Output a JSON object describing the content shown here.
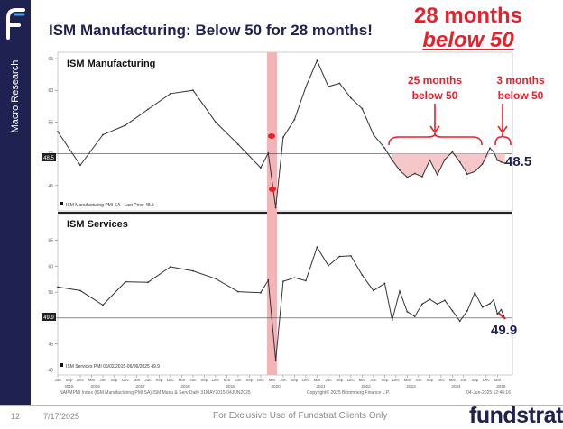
{
  "sidebar": {
    "label": "Macro Research"
  },
  "title": "ISM Manufacturing: Below 50 for 28 months!",
  "headline": {
    "line1": "28 months",
    "line2": "below 50"
  },
  "annotations": {
    "a1_l1": "25 months",
    "a1_l2": "below 50",
    "a2_l1": "3 months",
    "a2_l2": "below 50"
  },
  "footer": {
    "page": "12",
    "date": "7/17/2025",
    "disclaimer": "For Exclusive Use of Fundstrat Clients Only",
    "brand": "fundstrat"
  },
  "bloomberg_notes": {
    "left": "NAPMPMI Index (ISM Manufacturing PMI SA) ISM Manu & Serv Daily 31MAY2015-04JUN2025",
    "right": "Copyright© 2025 Bloomberg Finance L.P.",
    "date_stamp": "04-Jun-2025 12:46:16"
  },
  "colors": {
    "navy": "#1f2150",
    "red": "#e8202a",
    "shade": "#f3b4b7",
    "line": "#333333"
  },
  "chart_data": [
    {
      "type": "line",
      "title": "ISM Manufacturing",
      "legend": "ISM Manufacturing PMI SA - Last Price 48.5",
      "last_value": 48.5,
      "reference_line": 50,
      "ylim": [
        41,
        66
      ],
      "y_ticks": [
        45,
        50,
        55,
        60,
        65
      ],
      "x": [
        "2015-06",
        "2015-12",
        "2016-06",
        "2016-12",
        "2017-06",
        "2017-12",
        "2018-06",
        "2018-12",
        "2019-06",
        "2019-12",
        "2020-02",
        "2020-04",
        "2020-06",
        "2020-09",
        "2020-12",
        "2021-03",
        "2021-06",
        "2021-09",
        "2021-12",
        "2022-03",
        "2022-06",
        "2022-09",
        "2022-11",
        "2023-01",
        "2023-03",
        "2023-05",
        "2023-07",
        "2023-09",
        "2023-11",
        "2024-01",
        "2024-03",
        "2024-05",
        "2024-07",
        "2024-09",
        "2024-11",
        "2025-01",
        "2025-02",
        "2025-03",
        "2025-04",
        "2025-05"
      ],
      "values": [
        53.5,
        48.2,
        53.0,
        54.5,
        57.0,
        59.5,
        60.0,
        55.0,
        51.5,
        47.8,
        50.1,
        41.5,
        52.6,
        55.4,
        60.5,
        64.7,
        60.6,
        61.1,
        58.8,
        57.1,
        53.0,
        50.9,
        49.0,
        47.4,
        46.3,
        46.9,
        46.4,
        49.0,
        46.7,
        49.1,
        50.3,
        48.7,
        46.8,
        47.2,
        48.4,
        50.9,
        50.3,
        49.0,
        48.7,
        48.5
      ]
    },
    {
      "type": "line",
      "title": "ISM Services",
      "legend": "ISM Services PMI 06/02/2015-06/06/2025 49.9",
      "last_value": 49.9,
      "reference_line": 50,
      "ylim": [
        39,
        70
      ],
      "y_ticks": [
        40,
        45,
        50,
        55,
        60,
        65
      ],
      "x": [
        "2015-06",
        "2015-12",
        "2016-06",
        "2016-12",
        "2017-06",
        "2017-12",
        "2018-06",
        "2018-12",
        "2019-06",
        "2019-12",
        "2020-02",
        "2020-04",
        "2020-06",
        "2020-09",
        "2020-12",
        "2021-03",
        "2021-06",
        "2021-09",
        "2021-12",
        "2022-03",
        "2022-06",
        "2022-09",
        "2022-11",
        "2023-01",
        "2023-03",
        "2023-05",
        "2023-07",
        "2023-09",
        "2023-11",
        "2024-01",
        "2024-03",
        "2024-05",
        "2024-07",
        "2024-09",
        "2024-11",
        "2025-01",
        "2025-02",
        "2025-03",
        "2025-04",
        "2025-05"
      ],
      "values": [
        56.0,
        55.3,
        52.5,
        57.0,
        56.9,
        59.9,
        59.1,
        57.6,
        55.1,
        54.9,
        57.3,
        41.8,
        57.1,
        57.8,
        57.2,
        63.7,
        60.1,
        61.9,
        62.0,
        58.3,
        55.3,
        56.7,
        49.6,
        55.2,
        51.2,
        50.3,
        52.7,
        53.6,
        52.7,
        53.4,
        51.4,
        49.4,
        51.4,
        54.9,
        52.1,
        52.8,
        53.5,
        50.8,
        51.6,
        49.9
      ]
    }
  ],
  "x_axis": {
    "months": [
      "Jun",
      "Sep",
      "Dec",
      "Mar",
      "Jun",
      "Sep",
      "Dec",
      "Mar",
      "Jun",
      "Sep",
      "Dec",
      "Mar",
      "Jun",
      "Sep",
      "Dec",
      "Mar",
      "Jun",
      "Sep",
      "Dec",
      "Mar",
      "Jun",
      "Sep",
      "Dec",
      "Mar",
      "Jun",
      "Sep",
      "Dec",
      "Mar",
      "Jun",
      "Sep",
      "Dec",
      "Mar",
      "Jun",
      "Sep",
      "Dec",
      "Mar",
      "Jun",
      "Sep",
      "Dec",
      "Mar"
    ],
    "years": [
      "2015",
      "2016",
      "2017",
      "2018",
      "2019",
      "2020",
      "2021",
      "2022",
      "2023",
      "2024",
      "2025"
    ]
  }
}
